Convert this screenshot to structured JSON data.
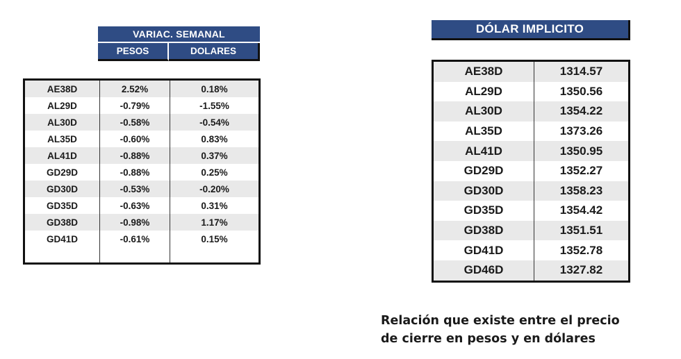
{
  "variacion": {
    "title": "VARIAC. SEMANAL",
    "col_pesos": "PESOS",
    "col_dolares": "DOLARES",
    "rows": [
      {
        "ticker": "AE38D",
        "pesos": "2.52%",
        "dolares": "0.18%"
      },
      {
        "ticker": "AL29D",
        "pesos": "-0.79%",
        "dolares": "-1.55%"
      },
      {
        "ticker": "AL30D",
        "pesos": "-0.58%",
        "dolares": "-0.54%"
      },
      {
        "ticker": "AL35D",
        "pesos": "-0.60%",
        "dolares": "0.83%"
      },
      {
        "ticker": "AL41D",
        "pesos": "-0.88%",
        "dolares": "0.37%"
      },
      {
        "ticker": "GD29D",
        "pesos": "-0.88%",
        "dolares": "0.25%"
      },
      {
        "ticker": "GD30D",
        "pesos": "-0.53%",
        "dolares": "-0.20%"
      },
      {
        "ticker": "GD35D",
        "pesos": "-0.63%",
        "dolares": "0.31%"
      },
      {
        "ticker": "GD38D",
        "pesos": "-0.98%",
        "dolares": "1.17%"
      },
      {
        "ticker": "GD41D",
        "pesos": "-0.61%",
        "dolares": "0.15%"
      }
    ]
  },
  "dolar_implicito": {
    "title": "DÓLAR IMPLICITO",
    "rows": [
      {
        "ticker": "AE38D",
        "valor": "1314.57"
      },
      {
        "ticker": "AL29D",
        "valor": "1350.56"
      },
      {
        "ticker": "AL30D",
        "valor": "1354.22"
      },
      {
        "ticker": "AL35D",
        "valor": "1373.26"
      },
      {
        "ticker": "AL41D",
        "valor": "1350.95"
      },
      {
        "ticker": "GD29D",
        "valor": "1352.27"
      },
      {
        "ticker": "GD30D",
        "valor": "1358.23"
      },
      {
        "ticker": "GD35D",
        "valor": "1354.42"
      },
      {
        "ticker": "GD38D",
        "valor": "1351.51"
      },
      {
        "ticker": "GD41D",
        "valor": "1352.78"
      },
      {
        "ticker": "GD46D",
        "valor": "1327.82"
      }
    ]
  },
  "caption": {
    "line1": "Relación que existe entre el precio",
    "line2": "de cierre en pesos y en dólares"
  },
  "colors": {
    "header_bg": "#2f4c84",
    "row_alt": "#e9e9e9"
  }
}
